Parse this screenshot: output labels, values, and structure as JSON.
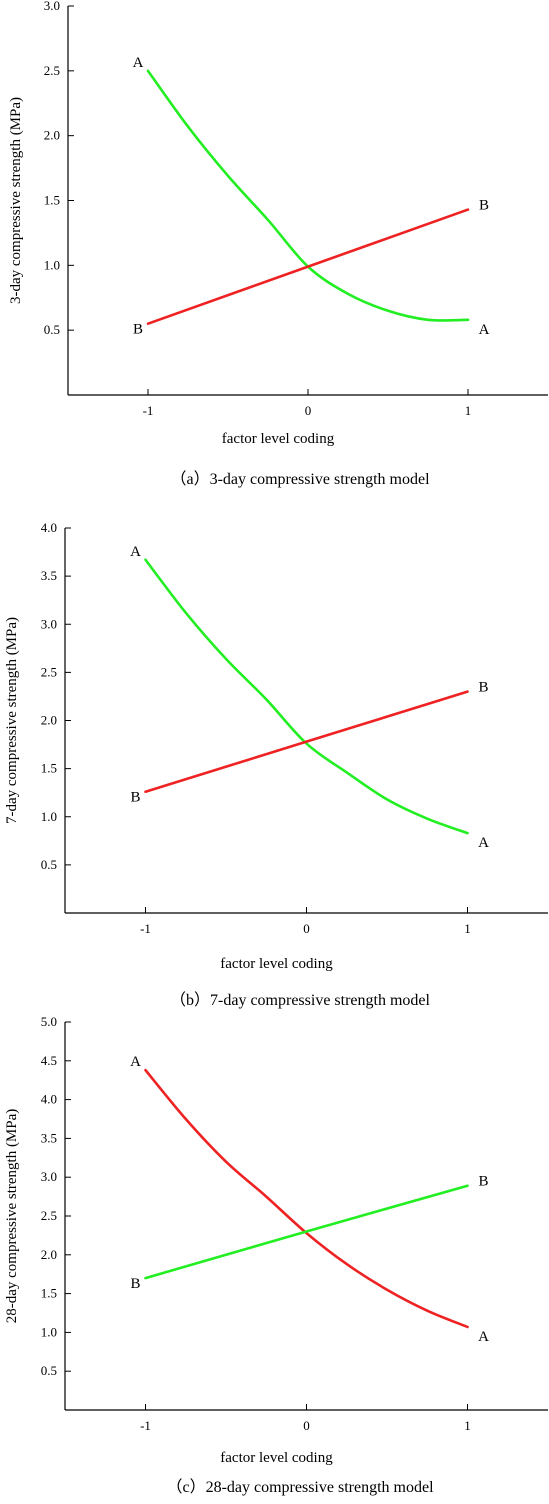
{
  "chart_data": [
    {
      "type": "line",
      "caption": "（a）3-day compressive strength model",
      "xlabel": "factor level coding",
      "ylabel": "3-day compressive strength (MPa)",
      "xlim": [
        -1.5,
        1.5
      ],
      "ylim": [
        0,
        3.0
      ],
      "xticks": [
        -1,
        0,
        1
      ],
      "yticks": [
        0.5,
        1.0,
        1.5,
        2.0,
        2.5,
        3.0
      ],
      "ytick_labels": [
        "0.5",
        "1.0",
        "1.5",
        "2.0",
        "2.5",
        "3.0"
      ],
      "xtick_labels": [
        "-1",
        "0",
        "1"
      ],
      "grid": false,
      "series": [
        {
          "name": "A",
          "color": "#22ee22",
          "x": [
            -1,
            -0.75,
            -0.5,
            -0.25,
            0,
            0.25,
            0.5,
            0.75,
            1
          ],
          "y": [
            2.5,
            2.07,
            1.69,
            1.35,
            0.99,
            0.78,
            0.65,
            0.58,
            0.58
          ],
          "start_label": "A",
          "end_label": "A"
        },
        {
          "name": "B",
          "color": "#ee2222",
          "x": [
            -1,
            0,
            1
          ],
          "y": [
            0.55,
            0.99,
            1.43
          ],
          "start_label": "B",
          "end_label": "B"
        }
      ]
    },
    {
      "type": "line",
      "caption": "（b）7-day compressive strength model",
      "xlabel": "factor level coding",
      "ylabel": "7-day compressive strength (MPa)",
      "xlim": [
        -1.5,
        1.5
      ],
      "ylim": [
        0,
        4.0
      ],
      "xticks": [
        -1,
        0,
        1
      ],
      "yticks": [
        0.5,
        1.0,
        1.5,
        2.0,
        2.5,
        3.0,
        3.5,
        4.0
      ],
      "ytick_labels": [
        "0.5",
        "1.0",
        "1.5",
        "2.0",
        "2.5",
        "3.0",
        "3.5",
        "4.0"
      ],
      "xtick_labels": [
        "-1",
        "0",
        "1"
      ],
      "grid": false,
      "series": [
        {
          "name": "A",
          "color": "#22ee22",
          "x": [
            -1,
            -0.75,
            -0.5,
            -0.25,
            0,
            0.25,
            0.5,
            0.75,
            1
          ],
          "y": [
            3.67,
            3.12,
            2.64,
            2.22,
            1.76,
            1.46,
            1.18,
            0.98,
            0.83
          ],
          "start_label": "A",
          "end_label": "A"
        },
        {
          "name": "B",
          "color": "#ee2222",
          "x": [
            -1,
            0,
            1
          ],
          "y": [
            1.26,
            1.78,
            2.3
          ],
          "start_label": "B",
          "end_label": "B"
        }
      ]
    },
    {
      "type": "line",
      "caption": "（c）28-day compressive strength model",
      "xlabel": "factor level coding",
      "ylabel": "28-day compressive strength (MPa)",
      "xlim": [
        -1.5,
        1.5
      ],
      "ylim": [
        0,
        5.0
      ],
      "xticks": [
        -1,
        0,
        1
      ],
      "yticks": [
        0.5,
        1.0,
        1.5,
        2.0,
        2.5,
        3.0,
        3.5,
        4.0,
        4.5,
        5.0
      ],
      "ytick_labels": [
        "0.5",
        "1.0",
        "1.5",
        "2.0",
        "2.5",
        "3.0",
        "3.5",
        "4.0",
        "4.5",
        "5.0"
      ],
      "xtick_labels": [
        "-1",
        "0",
        "1"
      ],
      "grid": false,
      "series": [
        {
          "name": "A",
          "color": "#ee2222",
          "x": [
            -1,
            -0.75,
            -0.5,
            -0.25,
            0,
            0.25,
            0.5,
            0.75,
            1
          ],
          "y": [
            4.38,
            3.75,
            3.2,
            2.75,
            2.28,
            1.88,
            1.55,
            1.28,
            1.07
          ],
          "start_label": "A",
          "end_label": "A"
        },
        {
          "name": "B",
          "color": "#22ee22",
          "x": [
            -1,
            0,
            1
          ],
          "y": [
            1.7,
            2.3,
            2.89
          ],
          "start_label": "B",
          "end_label": "B"
        }
      ]
    }
  ]
}
